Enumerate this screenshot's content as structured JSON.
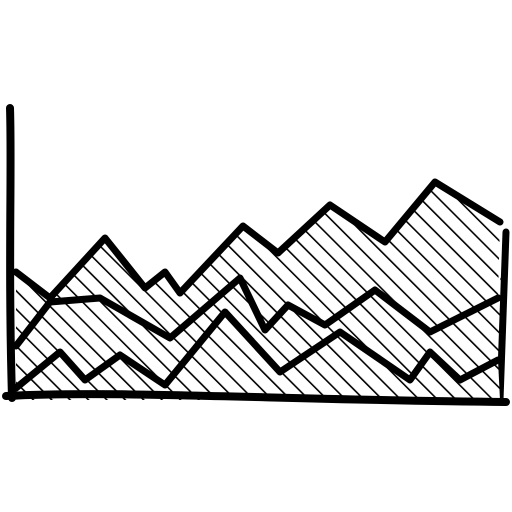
{
  "image": {
    "subject": "area-chart-icon",
    "style": "hand-drawn sketch with diagonal hatching",
    "colors": {
      "ink": "#000000",
      "background": "#ffffff"
    },
    "layers": [
      "back-area",
      "middle-area",
      "front-area"
    ],
    "axes": [
      "y-axis",
      "x-axis"
    ]
  }
}
